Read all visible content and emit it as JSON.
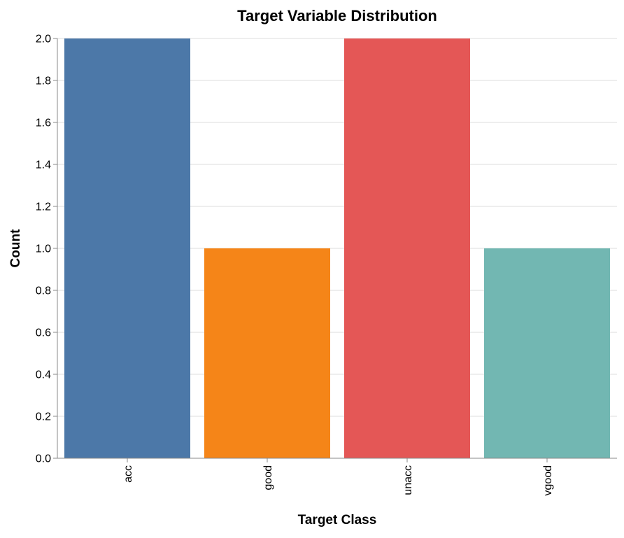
{
  "chart_data": {
    "type": "bar",
    "title": "Target Variable Distribution",
    "xlabel": "Target Class",
    "ylabel": "Count",
    "categories": [
      "acc",
      "good",
      "unacc",
      "vgood"
    ],
    "values": [
      2,
      1,
      2,
      1
    ],
    "colors": [
      "#4c78a8",
      "#f58518",
      "#e45756",
      "#72b7b2"
    ],
    "ylim": [
      0,
      2
    ],
    "yticks": [
      0,
      0.2,
      0.4,
      0.6,
      0.8,
      1.0,
      1.2,
      1.4,
      1.6,
      1.8,
      2.0
    ],
    "ytick_labels": [
      "0.0",
      "0.2",
      "0.4",
      "0.6",
      "0.8",
      "1.0",
      "1.2",
      "1.4",
      "1.6",
      "1.8",
      "2.0"
    ],
    "grid": true,
    "legend": "none"
  }
}
